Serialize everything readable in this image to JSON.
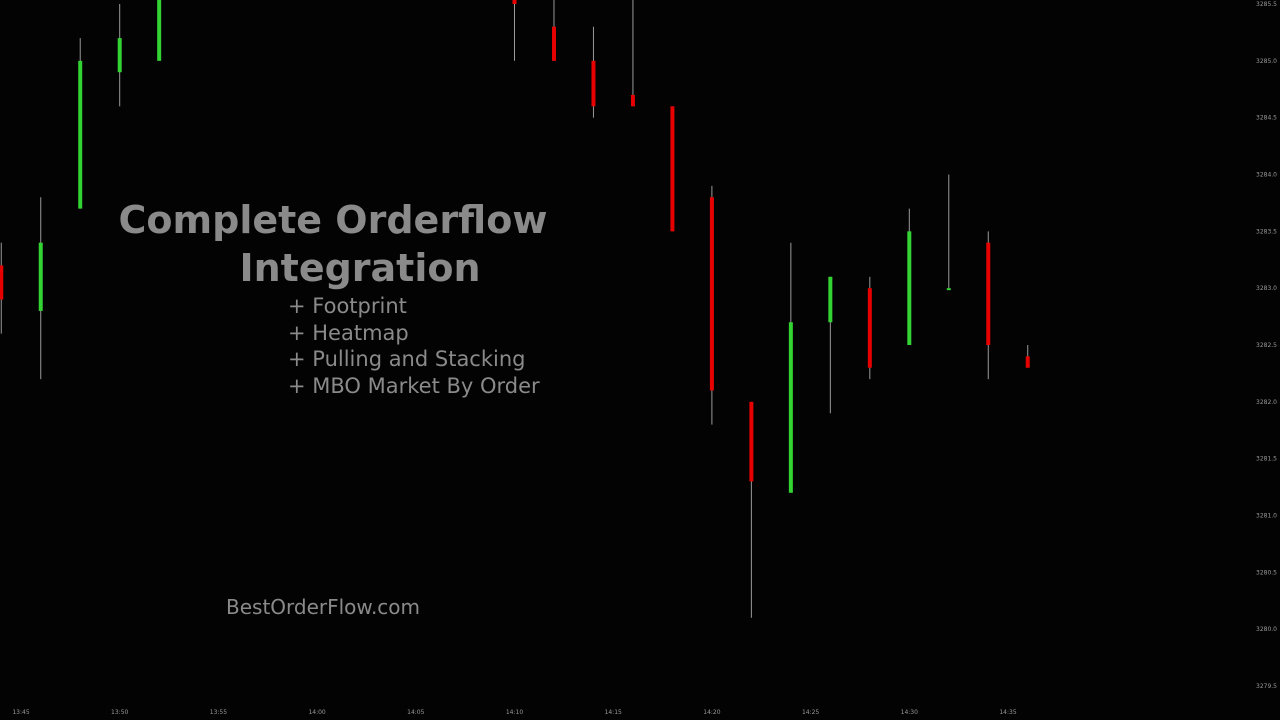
{
  "overlay": {
    "title_line1": "Complete Orderflow",
    "title_line2": "Integration",
    "features": [
      "+ Footprint",
      "+ Heatmap",
      "+ Pulling and Stacking",
      "+ MBO Market By Order"
    ],
    "website": "BestOrderFlow.com"
  },
  "colors": {
    "background": "#030303",
    "up": "#33d333",
    "down": "#e60000",
    "wick": "#9a9a9a",
    "text": "#8a8a8a",
    "axis_text": "#9a9a9a"
  },
  "chart_data": {
    "type": "candlestick",
    "x_ticks": [
      "13:45",
      "13:50",
      "13:55",
      "14:00",
      "14:05",
      "14:10",
      "14:15",
      "14:20",
      "14:25",
      "14:30",
      "14:35"
    ],
    "y_ticks": [
      3285.5,
      3285.0,
      3284.5,
      3284.0,
      3283.5,
      3283.0,
      3282.5,
      3282.0,
      3281.5,
      3281.0,
      3280.5,
      3280.0,
      3279.5
    ],
    "ylim": [
      3279.5,
      3285.6
    ],
    "y_axis_side": "right",
    "candles": [
      {
        "time": "13:44",
        "open": 3283.2,
        "high": 3283.4,
        "low": 3282.6,
        "close": 3282.9
      },
      {
        "time": "13:46",
        "open": 3282.8,
        "high": 3283.8,
        "low": 3282.2,
        "close": 3283.4
      },
      {
        "time": "13:48",
        "open": 3283.7,
        "high": 3285.2,
        "low": 3283.7,
        "close": 3285.0
      },
      {
        "time": "13:50",
        "open": 3284.9,
        "high": 3285.5,
        "low": 3284.6,
        "close": 3285.2
      },
      {
        "time": "13:52",
        "open": 3285.0,
        "high": 3285.6,
        "low": 3285.0,
        "close": 3285.6
      },
      {
        "time": "14:10",
        "open": 3285.6,
        "high": 3285.6,
        "low": 3285.0,
        "close": 3285.5
      },
      {
        "time": "14:12",
        "open": 3285.3,
        "high": 3285.6,
        "low": 3285.0,
        "close": 3285.0
      },
      {
        "time": "14:14",
        "open": 3285.0,
        "high": 3285.3,
        "low": 3284.5,
        "close": 3284.6
      },
      {
        "time": "14:16",
        "open": 3284.7,
        "high": 3285.6,
        "low": 3284.6,
        "close": 3284.6
      },
      {
        "time": "14:18",
        "open": 3284.6,
        "high": 3284.6,
        "low": 3283.5,
        "close": 3283.5
      },
      {
        "time": "14:20",
        "open": 3283.8,
        "high": 3283.9,
        "low": 3281.8,
        "close": 3282.1
      },
      {
        "time": "14:22",
        "open": 3282.0,
        "high": 3282.0,
        "low": 3280.1,
        "close": 3281.3
      },
      {
        "time": "14:24",
        "open": 3281.2,
        "high": 3283.4,
        "low": 3281.2,
        "close": 3282.7
      },
      {
        "time": "14:26",
        "open": 3282.7,
        "high": 3283.1,
        "low": 3281.9,
        "close": 3283.1
      },
      {
        "time": "14:28",
        "open": 3283.0,
        "high": 3283.1,
        "low": 3282.2,
        "close": 3282.3
      },
      {
        "time": "14:30",
        "open": 3282.5,
        "high": 3283.7,
        "low": 3282.5,
        "close": 3283.5
      },
      {
        "time": "14:32",
        "open": 3283.0,
        "high": 3284.0,
        "low": 3283.0,
        "close": 3283.0
      },
      {
        "time": "14:34",
        "open": 3283.4,
        "high": 3283.5,
        "low": 3282.2,
        "close": 3282.5
      },
      {
        "time": "14:36",
        "open": 3282.4,
        "high": 3282.5,
        "low": 3282.3,
        "close": 3282.3
      }
    ]
  }
}
